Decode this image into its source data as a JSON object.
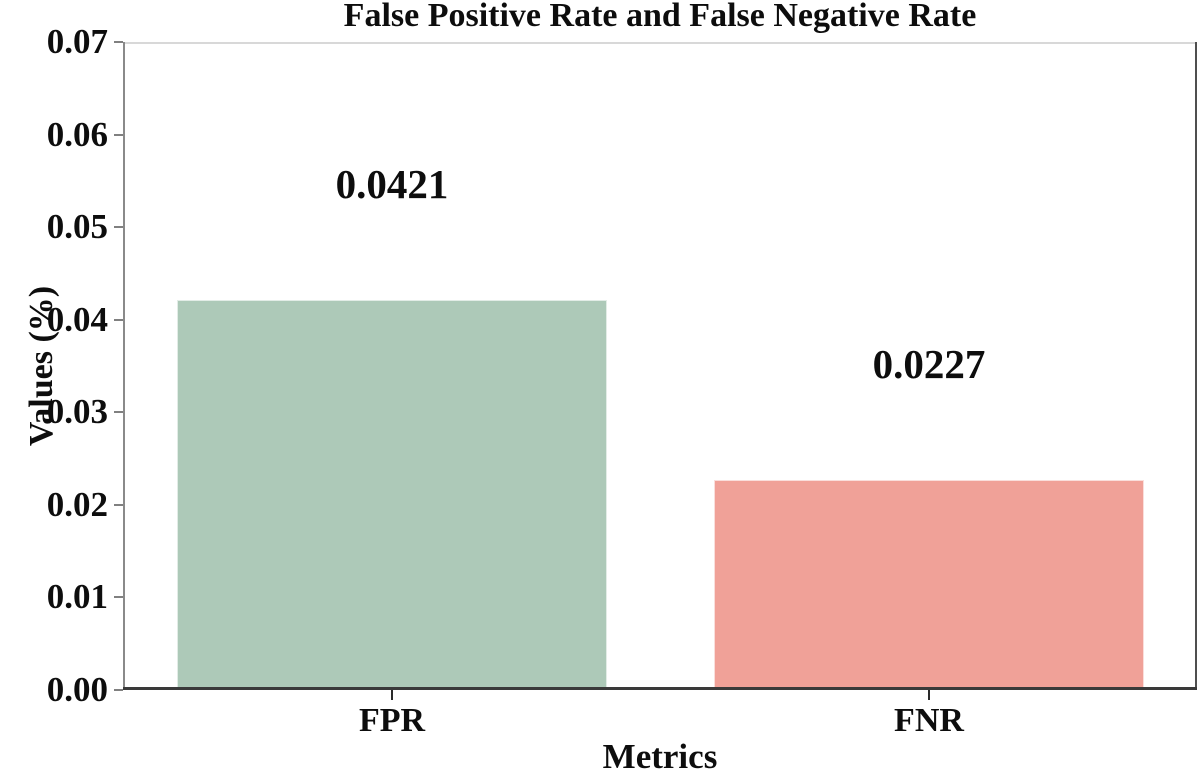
{
  "figure": {
    "title": "False Positive Rate and False Negative Rate",
    "xlabel": "Metrics",
    "ylabel": "Values (%)"
  },
  "chart_data": {
    "type": "bar",
    "title": "False Positive Rate and False Negative Rate",
    "xlabel": "Metrics",
    "ylabel": "Values (%)",
    "categories": [
      "FPR",
      "FNR"
    ],
    "values": [
      0.0421,
      0.0227
    ],
    "value_labels": [
      "0.0421",
      "0.0227"
    ],
    "bar_colors": [
      "#adc9b8",
      "#f0a198"
    ],
    "ylim": [
      0,
      0.07
    ],
    "ytick_labels": [
      "0.00",
      "0.01",
      "0.02",
      "0.03",
      "0.04",
      "0.05",
      "0.06",
      "0.07"
    ],
    "grid": false,
    "legend_position": "none",
    "text_color": "#0d0d0d",
    "background_color": "#ffffff"
  }
}
